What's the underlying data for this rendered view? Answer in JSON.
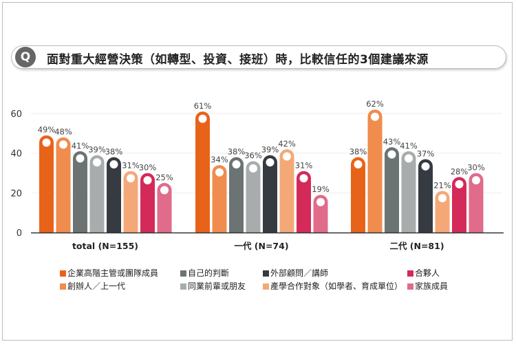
{
  "header": {
    "icon_label": "Q",
    "title": "面對重大經營決策（如轉型、投資、接班）時，比較信任的3個建議來源"
  },
  "chart_data": {
    "type": "bar",
    "title": "面對重大經營決策（如轉型、投資、接班）時，比較信任的3個建議來源",
    "categories": [
      "total (N=155)",
      "一代 (N=74)",
      "二代 (N=81)"
    ],
    "yticks": [
      0,
      20,
      40,
      60
    ],
    "ylim": [
      0,
      60
    ],
    "grid": true,
    "legend_position": "bottom",
    "series": [
      {
        "name": "企業高階主管或團隊成員",
        "color": "#e8631a",
        "values": [
          49,
          61,
          38
        ]
      },
      {
        "name": "創辦人／上一代",
        "color": "#ef8c4e",
        "values": [
          48,
          34,
          62
        ]
      },
      {
        "name": "自己的判斷",
        "color": "#6b7373",
        "values": [
          41,
          38,
          43
        ]
      },
      {
        "name": "同業前輩或朋友",
        "color": "#a9acad",
        "values": [
          39,
          36,
          41
        ]
      },
      {
        "name": "外部顧問／講師",
        "color": "#363b42",
        "values": [
          38,
          39,
          37
        ]
      },
      {
        "name": "產學合作對象（如學者、育成單位）",
        "color": "#f4a878",
        "values": [
          31,
          42,
          21
        ]
      },
      {
        "name": "合夥人",
        "color": "#d42a5a",
        "values": [
          30,
          31,
          28
        ]
      },
      {
        "name": "家族成員",
        "color": "#e06b8b",
        "values": [
          25,
          19,
          30
        ]
      }
    ]
  }
}
